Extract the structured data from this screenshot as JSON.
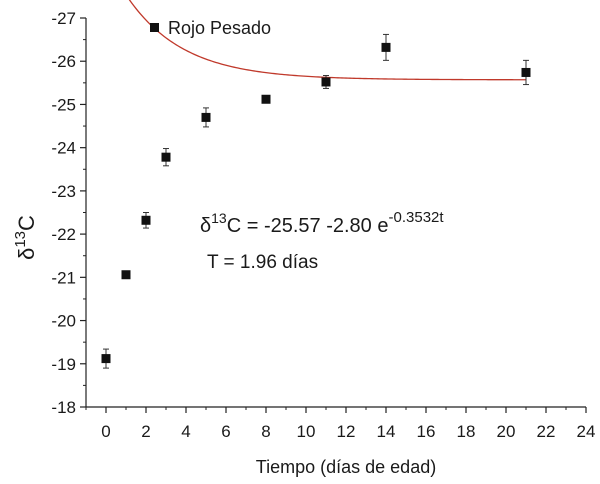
{
  "chart_data": {
    "type": "scatter",
    "xlabel": "Tiempo (días de edad)",
    "ylabel_symbol": "δ",
    "ylabel_sup": "13",
    "ylabel_suffix": "C",
    "xlim": [
      -1,
      24
    ],
    "ylim": [
      -18,
      -27
    ],
    "x_ticks": [
      0,
      2,
      4,
      6,
      8,
      10,
      12,
      14,
      16,
      18,
      20,
      22,
      24
    ],
    "y_ticks": [
      -18,
      -19,
      -20,
      -21,
      -22,
      -23,
      -24,
      -25,
      -26,
      -27
    ],
    "legend": {
      "marker": "■",
      "label": "Rojo Pesado",
      "position": "top-left"
    },
    "series": [
      {
        "name": "Rojo Pesado",
        "color": "#111111",
        "x": [
          0,
          1,
          2,
          3,
          5,
          8,
          11,
          14,
          21
        ],
        "y": [
          -19.12,
          -21.06,
          -22.32,
          -23.78,
          -24.7,
          -25.12,
          -25.52,
          -26.32,
          -25.74
        ],
        "err": [
          0.22,
          0.08,
          0.18,
          0.2,
          0.22,
          0.08,
          0.15,
          0.3,
          0.28
        ]
      }
    ],
    "fit": {
      "color": "#c0392b",
      "a": -25.57,
      "b": -2.8,
      "k": -0.3532
    },
    "annotations": {
      "equation_delta": "δ",
      "equation_sup": "13",
      "equation_main": "C = -25.57 -2.80 e",
      "equation_exp": "-0.3532t",
      "t_line": "T = 1.96 días"
    }
  }
}
